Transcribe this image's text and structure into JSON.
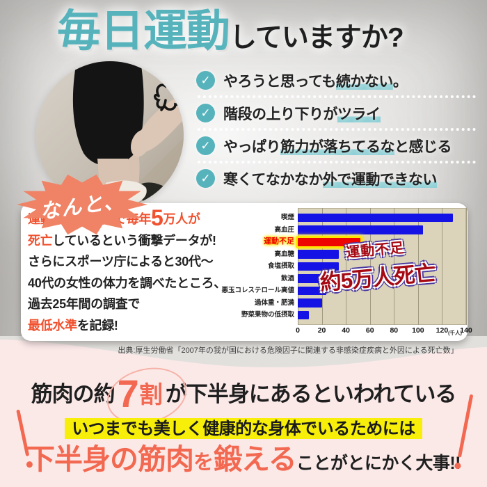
{
  "header": {
    "title_em": "毎日運動",
    "title_rest": "していますか?"
  },
  "photo": {
    "alt_name": "legs-photo",
    "doodle": "scribble-confusion-mark"
  },
  "bubble": {
    "text": "なんと、"
  },
  "checklist": {
    "check_glyph": "✓",
    "items": [
      {
        "pre": "やろうと思っても",
        "hl": "続かない",
        "post": "。"
      },
      {
        "pre": "階段の上り下りが",
        "hl": "ツライ",
        "post": ""
      },
      {
        "pre": "やっぱり",
        "hl": "筋力が落ちてるな",
        "post": "と感じる"
      },
      {
        "pre": "寒くてなかなか",
        "hl": "外で運動できない",
        "post": ""
      }
    ]
  },
  "info_box": {
    "l1_red": "運動不足が原因で毎年",
    "l1_big": "5",
    "l1_red2": "万人が",
    "l2_red": "死亡",
    "l2_black": "しているという衝撃データが!",
    "l3": "さらにスポーツ庁によると30代〜",
    "l4": "40代の女性の体力を調べたところ、",
    "l5": "過去25年間の調査で",
    "l6_red": "最低水準",
    "l6_black": "を記録!"
  },
  "chart_data": {
    "type": "bar",
    "orientation": "horizontal",
    "categories": [
      "喫煙",
      "高血圧",
      "運動不足",
      "高血糖",
      "食塩摂取",
      "飲酒",
      "悪玉コレステロール高値",
      "過体重・肥満",
      "野菜果物の低摂取"
    ],
    "values": [
      129,
      104,
      52,
      34,
      34,
      33,
      24,
      20,
      9
    ],
    "xlim": [
      0,
      140
    ],
    "xticks": [
      0,
      20,
      40,
      60,
      80,
      100,
      120,
      140
    ],
    "unit": "(千人)",
    "highlight_index": 2,
    "bar_color": "#1512e6",
    "highlight_color": "#ee0400",
    "highlight_glow": "#ffe600",
    "plot_bg": "#dbd4ba",
    "grid": true,
    "annotation": {
      "line1": "運動不足",
      "line2": "約5万人死亡"
    }
  },
  "source": "出典:厚生労働省「2007年の我が国における危険因子に関連する非感染症疾病と外因による死亡数」",
  "bottom": {
    "l1_pre": "筋肉の約",
    "l1_num": "7",
    "l1_unit": "割",
    "l1_post": "が下半身にあるといわれている",
    "l2": "いつまでも美しく健康的な身体でいるためには",
    "l3_em": "下半身の筋肉",
    "l3_em_small": "を",
    "l3_em2": "鍛える",
    "l3_rest": "ことがとにかく大事!!"
  },
  "colors": {
    "accent_teal": "#56b3bc",
    "teal_highlight": "#8fd0d6",
    "accent_coral": "#f26850",
    "bubble_coral": "#f08265",
    "red_text": "#f0512e",
    "yellow_highlight": "#f7ef0a",
    "pink_bg": "#fbe9e8",
    "annotation_purple": "#4a3aa0",
    "annotation_dark_red": "#a50a14"
  }
}
